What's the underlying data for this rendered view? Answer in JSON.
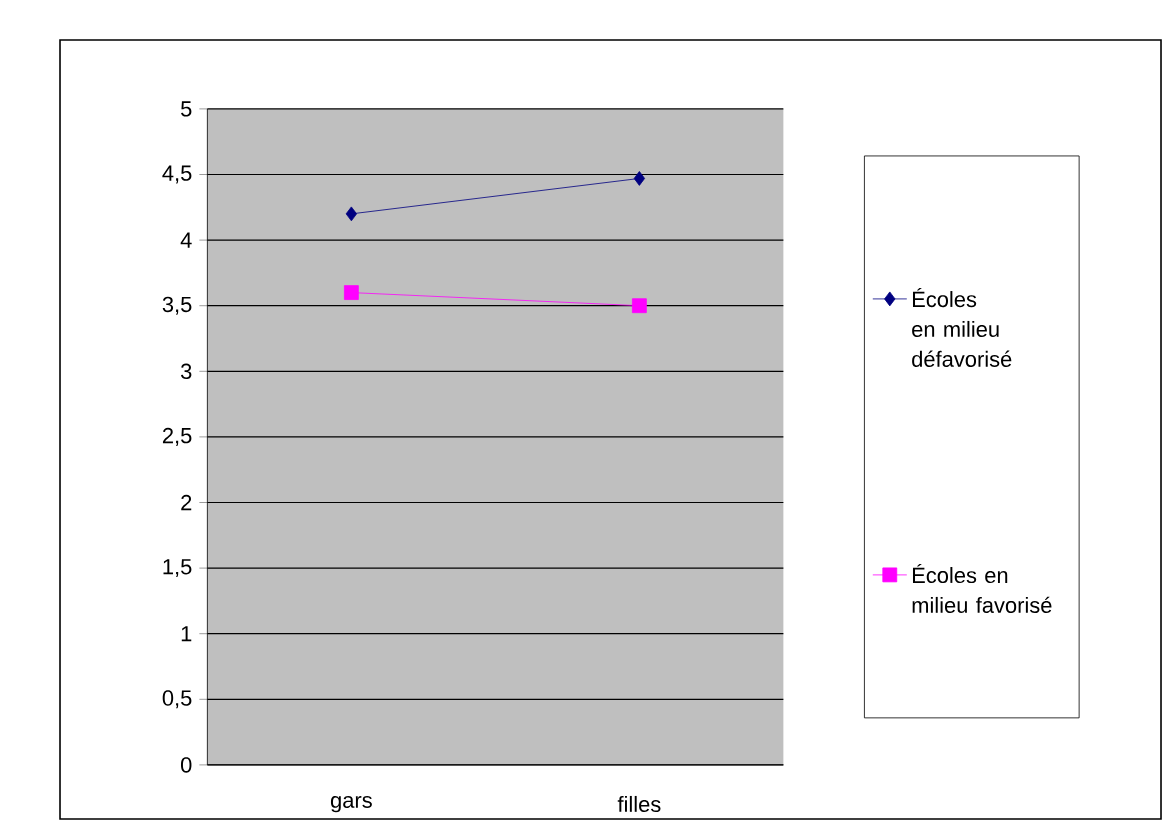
{
  "chart_data": {
    "type": "line",
    "categories": [
      "gars",
      "filles"
    ],
    "series": [
      {
        "name": "Écoles en milieu défavorisé",
        "color": "#000080",
        "marker": "diamond",
        "values": [
          4.2,
          4.47
        ]
      },
      {
        "name": "Écoles en milieu favorisé",
        "color": "#ff00ff",
        "marker": "square",
        "values": [
          3.6,
          3.5
        ]
      }
    ],
    "ylim": [
      0,
      5
    ],
    "yticks": [
      0,
      {
        "value": 0.5,
        "label": "0,5"
      },
      1,
      {
        "value": 1.5,
        "label": "1,5"
      },
      2,
      {
        "value": 2.5,
        "label": "2,5"
      },
      3,
      {
        "value": 3.5,
        "label": "3,5"
      },
      4,
      {
        "value": 4.5,
        "label": "4,5"
      },
      5
    ],
    "grid": "y",
    "legend": "right",
    "line_style": "solid"
  }
}
